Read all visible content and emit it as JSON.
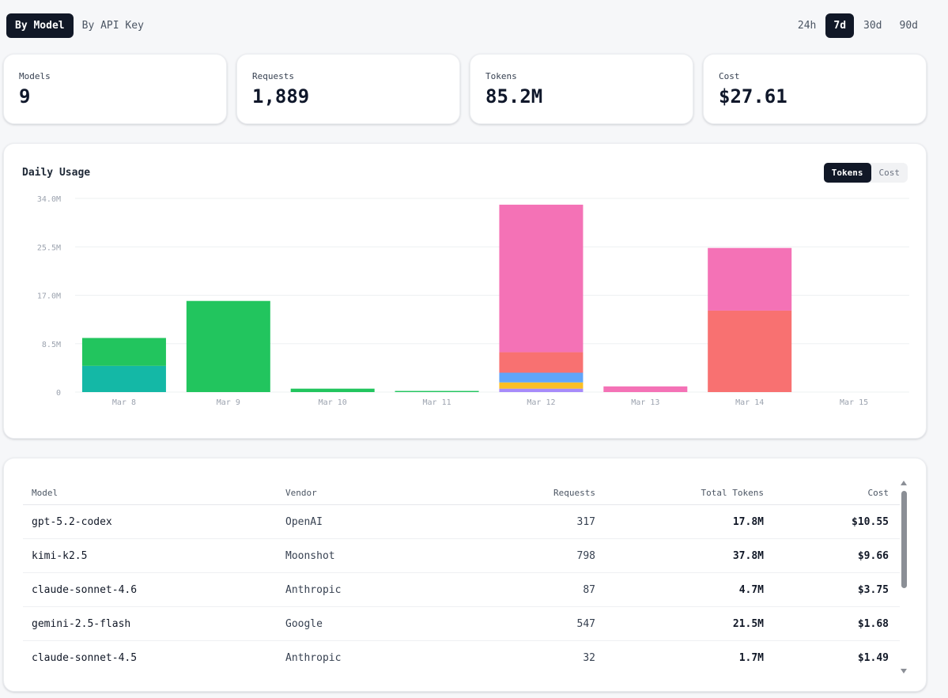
{
  "view_tabs": [
    {
      "label": "By Model",
      "active": true
    },
    {
      "label": "By API Key",
      "active": false
    }
  ],
  "range_tabs": [
    {
      "label": "24h",
      "active": false
    },
    {
      "label": "7d",
      "active": true
    },
    {
      "label": "30d",
      "active": false
    },
    {
      "label": "90d",
      "active": false
    }
  ],
  "stats": [
    {
      "label": "Models",
      "value": "9"
    },
    {
      "label": "Requests",
      "value": "1,889"
    },
    {
      "label": "Tokens",
      "value": "85.2M"
    },
    {
      "label": "Cost",
      "value": "$27.61"
    }
  ],
  "chart_card": {
    "title": "Daily Usage",
    "toggle": [
      {
        "label": "Tokens",
        "active": true
      },
      {
        "label": "Cost",
        "active": false
      }
    ]
  },
  "colors": {
    "teal": "#14b8a6",
    "green": "#22c55e",
    "purple": "#a78bfa",
    "yellow": "#fbbf24",
    "blue": "#60a5fa",
    "red": "#f87171",
    "pink": "#f472b6",
    "grid": "#eef0f2",
    "axis_text": "#9ca3af"
  },
  "chart_data": {
    "type": "bar",
    "stacked": true,
    "categories": [
      "Mar 8",
      "Mar 9",
      "Mar 10",
      "Mar 11",
      "Mar 12",
      "Mar 13",
      "Mar 14",
      "Mar 15"
    ],
    "y_ticks": [
      "0",
      "8.5M",
      "17.0M",
      "25.5M",
      "34.0M"
    ],
    "ylim": [
      0,
      34000000
    ],
    "grid": true,
    "series": [
      {
        "color": "teal",
        "values": [
          4600000,
          0,
          0,
          0,
          0,
          0,
          0,
          0
        ]
      },
      {
        "color": "green",
        "values": [
          4900000,
          16000000,
          600000,
          200000,
          0,
          0,
          0,
          0
        ]
      },
      {
        "color": "purple",
        "values": [
          0,
          0,
          0,
          0,
          600000,
          0,
          0,
          0
        ]
      },
      {
        "color": "yellow",
        "values": [
          0,
          0,
          0,
          0,
          1100000,
          0,
          0,
          0
        ]
      },
      {
        "color": "blue",
        "values": [
          0,
          0,
          0,
          0,
          1700000,
          0,
          0,
          0
        ]
      },
      {
        "color": "red",
        "values": [
          0,
          0,
          0,
          0,
          3600000,
          0,
          14300000,
          0
        ]
      },
      {
        "color": "pink",
        "values": [
          0,
          0,
          0,
          0,
          25900000,
          1000000,
          11000000,
          0
        ]
      }
    ]
  },
  "table": {
    "headers": {
      "model": "Model",
      "vendor": "Vendor",
      "requests": "Requests",
      "tokens": "Total Tokens",
      "cost": "Cost"
    },
    "rows": [
      {
        "model": "gpt-5.2-codex",
        "vendor": "OpenAI",
        "requests": "317",
        "tokens": "17.8M",
        "cost": "$10.55"
      },
      {
        "model": "kimi-k2.5",
        "vendor": "Moonshot",
        "requests": "798",
        "tokens": "37.8M",
        "cost": "$9.66"
      },
      {
        "model": "claude-sonnet-4.6",
        "vendor": "Anthropic",
        "requests": "87",
        "tokens": "4.7M",
        "cost": "$3.75"
      },
      {
        "model": "gemini-2.5-flash",
        "vendor": "Google",
        "requests": "547",
        "tokens": "21.5M",
        "cost": "$1.68"
      },
      {
        "model": "claude-sonnet-4.5",
        "vendor": "Anthropic",
        "requests": "32",
        "tokens": "1.7M",
        "cost": "$1.49"
      }
    ]
  }
}
